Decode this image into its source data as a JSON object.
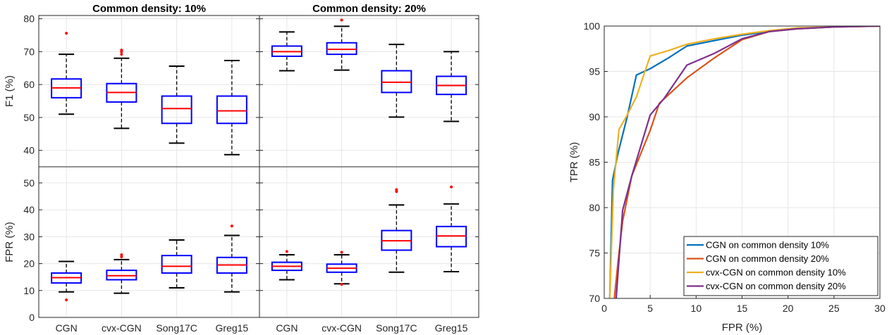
{
  "chart_data": [
    {
      "type": "box",
      "title": "Common density: 10%",
      "ylabel": "F1 (%)",
      "ylim": [
        35,
        81
      ],
      "yticks": [
        40,
        50,
        60,
        70,
        80
      ],
      "categories": [
        "CGN",
        "cvx-CGN",
        "Song17C",
        "Greg15"
      ],
      "boxes": [
        {
          "whisker_low": 51,
          "q1": 56,
          "median": 59,
          "q3": 61.7,
          "whisker_high": 69.2,
          "outliers": [
            75.6
          ]
        },
        {
          "whisker_low": 46.7,
          "q1": 54.7,
          "median": 57.6,
          "q3": 60.3,
          "whisker_high": 68,
          "outliers": [
            69.2,
            70,
            70.5
          ]
        },
        {
          "whisker_low": 42.2,
          "q1": 48.2,
          "median": 52.7,
          "q3": 56.5,
          "whisker_high": 65.6,
          "outliers": []
        },
        {
          "whisker_low": 38.7,
          "q1": 48.2,
          "median": 52,
          "q3": 56.5,
          "whisker_high": 67.3,
          "outliers": []
        }
      ]
    },
    {
      "type": "box",
      "title": "Common density: 20%",
      "ylabel": "",
      "ylim": [
        35,
        81
      ],
      "categories": [
        "CGN",
        "cvx-CGN",
        "Song17C",
        "Greg15"
      ],
      "boxes": [
        {
          "whisker_low": 64.2,
          "q1": 68.6,
          "median": 70,
          "q3": 71.7,
          "whisker_high": 76,
          "outliers": []
        },
        {
          "whisker_low": 64.4,
          "q1": 69.2,
          "median": 70.7,
          "q3": 72.7,
          "whisker_high": 77.7,
          "outliers": [
            79.6
          ]
        },
        {
          "whisker_low": 50.1,
          "q1": 57.6,
          "median": 60.7,
          "q3": 64.2,
          "whisker_high": 72.2,
          "outliers": []
        },
        {
          "whisker_low": 48.8,
          "q1": 57,
          "median": 59.7,
          "q3": 62.5,
          "whisker_high": 70,
          "outliers": []
        }
      ]
    },
    {
      "type": "box",
      "title": "",
      "ylabel": "FPR (%)",
      "ylim": [
        0,
        56
      ],
      "yticks": [
        0,
        10,
        20,
        30,
        40,
        50
      ],
      "categories": [
        "CGN",
        "cvx-CGN",
        "Song17C",
        "Greg15"
      ],
      "boxes": [
        {
          "whisker_low": 9.5,
          "q1": 12.8,
          "median": 14.8,
          "q3": 16.5,
          "whisker_high": 20.8,
          "outliers": [
            6.5
          ]
        },
        {
          "whisker_low": 9,
          "q1": 14,
          "median": 15.5,
          "q3": 17.5,
          "whisker_high": 21.5,
          "outliers": [
            22.5,
            23.3
          ]
        },
        {
          "whisker_low": 11,
          "q1": 16.5,
          "median": 19,
          "q3": 23,
          "whisker_high": 28.8,
          "outliers": []
        },
        {
          "whisker_low": 9.5,
          "q1": 16.5,
          "median": 19.5,
          "q3": 22.3,
          "whisker_high": 30.5,
          "outliers": [
            34
          ]
        }
      ]
    },
    {
      "type": "box",
      "title": "",
      "ylabel": "",
      "ylim": [
        0,
        56
      ],
      "categories": [
        "CGN",
        "cvx-CGN",
        "Song17C",
        "Greg15"
      ],
      "boxes": [
        {
          "whisker_low": 14,
          "q1": 17.5,
          "median": 19,
          "q3": 20.5,
          "whisker_high": 23.3,
          "outliers": [
            24.5
          ]
        },
        {
          "whisker_low": 12.5,
          "q1": 16.8,
          "median": 18.3,
          "q3": 19.8,
          "whisker_high": 23.3,
          "outliers": [
            12.3,
            24.2
          ]
        },
        {
          "whisker_low": 16.8,
          "q1": 25,
          "median": 28.5,
          "q3": 32.3,
          "whisker_high": 41.8,
          "outliers": [
            46.8,
            47.5
          ]
        },
        {
          "whisker_low": 17,
          "q1": 26.3,
          "median": 30.3,
          "q3": 33.8,
          "whisker_high": 42.2,
          "outliers": [
            48.5
          ]
        }
      ]
    },
    {
      "type": "line",
      "title": "",
      "xlabel": "FPR (%)",
      "ylabel": "TPR (%)",
      "xlim": [
        0,
        30
      ],
      "ylim": [
        70,
        100
      ],
      "xticks": [
        0,
        5,
        10,
        15,
        20,
        25,
        30
      ],
      "yticks": [
        70,
        75,
        80,
        85,
        90,
        95,
        100
      ],
      "grid": true,
      "legend_position": "bottom-right",
      "series": [
        {
          "name": "CGN on common density 10%",
          "color": "#0072BD",
          "x": [
            0.6,
            0.9,
            1.5,
            2.5,
            3.5,
            5,
            7,
            9,
            12,
            15,
            18,
            21,
            25,
            30
          ],
          "y": [
            70,
            83,
            86,
            90,
            94.6,
            95.3,
            96.5,
            97.8,
            98.4,
            99,
            99.4,
            99.7,
            99.9,
            100
          ]
        },
        {
          "name": "CGN on common density 20%",
          "color": "#D95319",
          "x": [
            1.1,
            1.5,
            2,
            3,
            4,
            5,
            6,
            9,
            12,
            15,
            18,
            21,
            25,
            30
          ],
          "y": [
            70,
            74,
            78.5,
            83.5,
            86,
            88.5,
            91.5,
            94.3,
            96.5,
            98.5,
            99.4,
            99.7,
            99.9,
            100
          ]
        },
        {
          "name": "cvx-CGN on common density 10%",
          "color": "#EDB120",
          "x": [
            0.6,
            1,
            1.6,
            2.5,
            3.5,
            5,
            7,
            9,
            12,
            15,
            18,
            21,
            25,
            30
          ],
          "y": [
            70,
            82,
            88.6,
            90.2,
            92.2,
            96.7,
            97.3,
            98,
            98.6,
            99.1,
            99.5,
            99.8,
            99.9,
            100
          ]
        },
        {
          "name": "cvx-CGN on common density 20%",
          "color": "#7E2F8E",
          "x": [
            1.3,
            2,
            3,
            5,
            6.5,
            9,
            12,
            15,
            18,
            21,
            25,
            30
          ],
          "y": [
            70,
            79.7,
            83.5,
            90.2,
            92,
            95.7,
            97,
            98.6,
            99.4,
            99.7,
            99.9,
            100
          ]
        }
      ]
    }
  ]
}
